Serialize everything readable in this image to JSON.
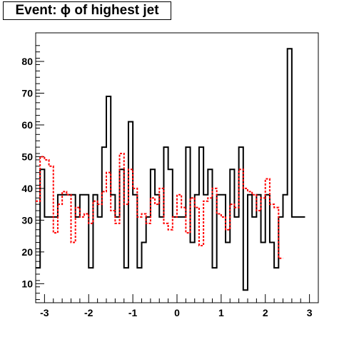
{
  "chart_data": {
    "type": "step-histogram",
    "title": "Event: ϕ of highest jet",
    "xlabel": "",
    "ylabel": "",
    "xlim": [
      -3.2,
      3.2
    ],
    "ylim": [
      4,
      89
    ],
    "x_ticks": [
      -3,
      -2,
      -1,
      0,
      1,
      2,
      3
    ],
    "y_ticks": [
      10,
      20,
      30,
      40,
      50,
      60,
      70,
      80
    ],
    "bin_width": 0.1,
    "series": [
      {
        "style": "solid",
        "color": "#000000",
        "values": [
          15,
          46,
          31,
          31,
          31,
          38,
          38,
          38,
          38,
          31,
          38,
          38,
          15,
          38,
          31,
          53,
          69,
          38,
          31,
          46,
          15,
          61,
          38,
          15,
          23,
          31,
          46,
          38,
          31,
          53,
          46,
          31,
          31,
          31,
          53,
          23,
          38,
          53,
          38,
          46,
          15,
          38,
          38,
          23,
          46,
          31,
          53,
          8,
          38,
          31,
          38,
          23,
          38,
          23,
          15,
          31,
          38,
          84,
          31,
          31,
          31
        ]
      },
      {
        "style": "dashed",
        "color": "#ff0000",
        "values": [
          36,
          50,
          49,
          47,
          26,
          35,
          39,
          38,
          23,
          34,
          31,
          32,
          29,
          36,
          35,
          39,
          45,
          33,
          29,
          51,
          35,
          46,
          40,
          31,
          32,
          29,
          37,
          35,
          40,
          29,
          27,
          31,
          38,
          34,
          26,
          37,
          34,
          22,
          36,
          37,
          40,
          32,
          31,
          27,
          35,
          34,
          46,
          40,
          39,
          38,
          33,
          37,
          43,
          35,
          34,
          18
        ]
      }
    ]
  }
}
